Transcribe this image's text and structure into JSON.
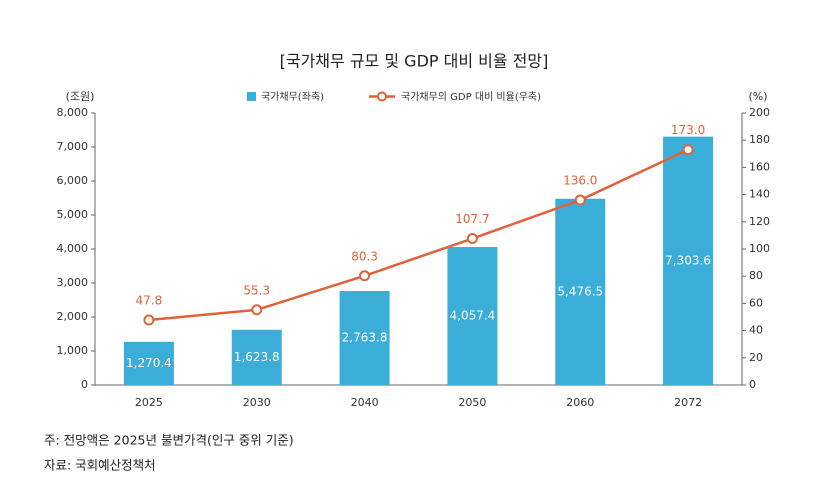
{
  "chart_data": {
    "type": "bar-line",
    "title": "[국가채무 규모 및 GDP 대비 비율 전망]",
    "y_label": "(조원)",
    "y2_label": "(%)",
    "categories": [
      "2025",
      "2030",
      "2040",
      "2050",
      "2060",
      "2072"
    ],
    "series": [
      {
        "name": "국가채무(좌축)",
        "type": "bar",
        "color": "#3aaed8",
        "values": [
          1270.4,
          1623.8,
          2763.8,
          4057.4,
          5476.5,
          7303.6
        ],
        "value_labels": [
          "1,270.4",
          "1,623.8",
          "2,763.8",
          "4,057.4",
          "5,476.5",
          "7,303.6"
        ]
      },
      {
        "name": "국가채무의 GDP 대비 비율(우축)",
        "type": "line",
        "axis": "y2",
        "color": "#e0623a",
        "values": [
          47.8,
          55.3,
          80.3,
          107.7,
          136.0,
          173.0
        ],
        "value_labels": [
          "47.8",
          "55.3",
          "80.3",
          "107.7",
          "136.0",
          "173.0"
        ]
      }
    ],
    "ylim": [
      0,
      8000
    ],
    "yticks": [
      0,
      {
        "value": 1000,
        "label": "1,000"
      },
      {
        "value": 2000,
        "label": "2,000"
      },
      {
        "value": 3000,
        "label": "3,000"
      },
      {
        "value": 4000,
        "label": "4,000"
      },
      {
        "value": 5000,
        "label": "5,000"
      },
      {
        "value": 6000,
        "label": "6,000"
      },
      {
        "value": 7000,
        "label": "7,000"
      },
      {
        "value": 8000,
        "label": "8,000"
      }
    ],
    "y2lim": [
      0,
      200
    ],
    "y2ticks": [
      0,
      20,
      40,
      60,
      80,
      100,
      120,
      140,
      160,
      180,
      200
    ],
    "notes": [
      "주: 전망액은 2025년 불변가격(인구 중위 기준)",
      "자료: 국회예산정책처"
    ]
  }
}
